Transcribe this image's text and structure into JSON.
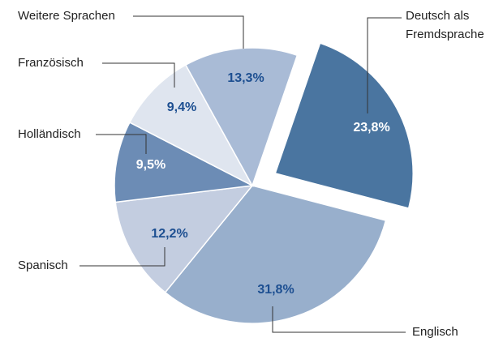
{
  "chart_data": {
    "type": "pie",
    "categories": [
      "Deutsch als Fremdsprache",
      "Englisch",
      "Spanisch",
      "Holländisch",
      "Französisch",
      "Weitere Sprachen"
    ],
    "values": [
      23.8,
      31.8,
      12.2,
      9.5,
      9.4,
      13.3
    ],
    "value_labels": [
      "23,8%",
      "31,8%",
      "12,2%",
      "9,5%",
      "9,4%",
      "13,3%"
    ],
    "colors": [
      "#4a75a0",
      "#98afcc",
      "#c3cde0",
      "#6c8cb5",
      "#dfe5ef",
      "#a9bbd6"
    ],
    "exploded": [
      0
    ]
  }
}
